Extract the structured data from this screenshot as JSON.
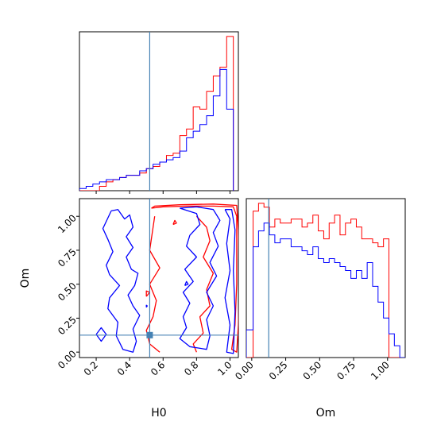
{
  "chart_data": {
    "type": "corner",
    "truth": {
      "H0": 0.52,
      "Om": 0.125
    },
    "colors": {
      "run_a": "#ff0000",
      "run_b": "#0000ff",
      "truth": "#4682b4"
    },
    "H0_hist": {
      "xlim": [
        0.1,
        1.05
      ],
      "edges": [
        0.0,
        0.1,
        0.14,
        0.18,
        0.22,
        0.26,
        0.3,
        0.34,
        0.38,
        0.42,
        0.46,
        0.5,
        0.54,
        0.58,
        0.62,
        0.66,
        0.7,
        0.74,
        0.78,
        0.82,
        0.86,
        0.9,
        0.94,
        0.98,
        1.02
      ],
      "red": [
        0,
        0,
        0,
        0,
        2,
        4,
        5,
        6,
        7,
        7,
        8,
        10,
        11,
        13,
        16,
        17,
        25,
        28,
        38,
        37,
        45,
        52,
        56,
        70
      ],
      "blue": [
        0,
        1,
        2,
        3,
        4,
        5,
        5,
        6,
        7,
        7,
        9,
        10,
        12,
        13,
        14,
        15,
        18,
        24,
        27,
        30,
        34,
        43,
        55,
        37
      ]
    },
    "Om_hist": {
      "xlim": [
        -0.04,
        1.13
      ],
      "edges": [
        -0.04,
        0.01,
        0.05,
        0.09,
        0.13,
        0.17,
        0.21,
        0.25,
        0.29,
        0.33,
        0.37,
        0.41,
        0.45,
        0.49,
        0.53,
        0.57,
        0.61,
        0.65,
        0.69,
        0.73,
        0.77,
        0.81,
        0.85,
        0.89,
        0.93,
        0.97,
        1.01,
        1.05,
        1.09,
        1.13
      ],
      "red": [
        0,
        37,
        39,
        38,
        33,
        35,
        34,
        34,
        35,
        35,
        33,
        34,
        36,
        32,
        30,
        34,
        36,
        31,
        34,
        35,
        33,
        30,
        30,
        29,
        28,
        30,
        0,
        0,
        0
      ],
      "blue": [
        7,
        28,
        32,
        34,
        31,
        29,
        30,
        30,
        28,
        28,
        27,
        26,
        28,
        25,
        24,
        25,
        24,
        23,
        22,
        20,
        22,
        20,
        24,
        18,
        14,
        10,
        6,
        3,
        0
      ]
    },
    "joint": {
      "xlim": [
        0.1,
        1.05
      ],
      "ylim": [
        -0.04,
        1.13
      ],
      "red_contours": [
        [
          [
            0.53,
            1.06
          ],
          [
            0.6,
            1.07
          ],
          [
            0.75,
            1.075
          ],
          [
            0.9,
            1.075
          ],
          [
            1.02,
            1.07
          ],
          [
            1.04,
            1.0
          ],
          [
            1.04,
            0.8
          ],
          [
            1.04,
            0.5
          ],
          [
            1.03,
            0.2
          ],
          [
            1.01,
            0.02
          ],
          [
            1.04,
            0.0
          ],
          [
            1.05,
            0.2
          ],
          [
            1.055,
            0.5
          ],
          [
            1.05,
            0.9
          ],
          [
            1.04,
            1.08
          ],
          [
            0.9,
            1.09
          ],
          [
            0.7,
            1.085
          ],
          [
            0.55,
            1.075
          ],
          [
            0.53,
            1.06
          ]
        ],
        [
          [
            0.55,
            1.0
          ],
          [
            0.52,
            0.75
          ],
          [
            0.58,
            0.62
          ],
          [
            0.52,
            0.5
          ],
          [
            0.56,
            0.38
          ],
          [
            0.54,
            0.26
          ],
          [
            0.5,
            0.16
          ],
          [
            0.52,
            0.06
          ],
          [
            0.58,
            0.0
          ]
        ],
        [
          [
            0.8,
            1.0
          ],
          [
            0.86,
            0.92
          ],
          [
            0.88,
            0.82
          ],
          [
            0.84,
            0.7
          ],
          [
            0.9,
            0.58
          ],
          [
            0.86,
            0.46
          ],
          [
            0.88,
            0.34
          ],
          [
            0.82,
            0.26
          ],
          [
            0.84,
            0.14
          ],
          [
            0.78,
            0.06
          ],
          [
            0.8,
            0.0
          ]
        ],
        [
          [
            0.66,
            0.94
          ],
          [
            0.68,
            0.95
          ],
          [
            0.67,
            0.97
          ],
          [
            0.66,
            0.94
          ]
        ],
        [
          [
            0.5,
            0.41
          ],
          [
            0.52,
            0.44
          ],
          [
            0.5,
            0.45
          ],
          [
            0.5,
            0.41
          ]
        ]
      ],
      "blue_contours": [
        [
          [
            0.29,
            1.04
          ],
          [
            0.33,
            1.05
          ],
          [
            0.37,
            0.98
          ],
          [
            0.4,
            1.01
          ],
          [
            0.42,
            0.92
          ],
          [
            0.38,
            0.85
          ],
          [
            0.42,
            0.77
          ],
          [
            0.38,
            0.7
          ],
          [
            0.41,
            0.61
          ],
          [
            0.45,
            0.58
          ],
          [
            0.43,
            0.49
          ],
          [
            0.39,
            0.42
          ],
          [
            0.42,
            0.34
          ],
          [
            0.46,
            0.27
          ],
          [
            0.42,
            0.17
          ],
          [
            0.44,
            0.08
          ],
          [
            0.42,
            0.0
          ],
          [
            0.36,
            0.02
          ],
          [
            0.32,
            0.12
          ],
          [
            0.33,
            0.22
          ],
          [
            0.27,
            0.32
          ],
          [
            0.28,
            0.4
          ],
          [
            0.34,
            0.49
          ],
          [
            0.28,
            0.57
          ],
          [
            0.26,
            0.64
          ],
          [
            0.3,
            0.74
          ],
          [
            0.27,
            0.83
          ],
          [
            0.24,
            0.91
          ],
          [
            0.29,
            1.04
          ]
        ],
        [
          [
            0.7,
            1.06
          ],
          [
            0.8,
            1.02
          ],
          [
            0.82,
            0.94
          ],
          [
            0.76,
            0.86
          ],
          [
            0.74,
            0.78
          ],
          [
            0.8,
            0.7
          ],
          [
            0.73,
            0.61
          ],
          [
            0.78,
            0.52
          ],
          [
            0.72,
            0.44
          ],
          [
            0.76,
            0.36
          ],
          [
            0.72,
            0.26
          ],
          [
            0.74,
            0.18
          ],
          [
            0.7,
            0.1
          ],
          [
            0.76,
            0.04
          ],
          [
            0.86,
            0.02
          ],
          [
            0.88,
            0.12
          ],
          [
            0.86,
            0.24
          ],
          [
            0.9,
            0.34
          ],
          [
            0.86,
            0.44
          ],
          [
            0.92,
            0.56
          ],
          [
            0.88,
            0.66
          ],
          [
            0.93,
            0.78
          ],
          [
            0.9,
            0.88
          ],
          [
            0.94,
            0.97
          ],
          [
            0.9,
            1.05
          ],
          [
            0.8,
            1.07
          ],
          [
            0.7,
            1.06
          ]
        ],
        [
          [
            0.97,
            1.05
          ],
          [
            1.0,
            0.98
          ],
          [
            0.98,
            0.8
          ],
          [
            1.0,
            0.6
          ],
          [
            0.97,
            0.4
          ],
          [
            1.0,
            0.2
          ],
          [
            0.98,
            0.0
          ],
          [
            1.02,
            -0.01
          ],
          [
            1.03,
            0.3
          ],
          [
            1.02,
            0.6
          ],
          [
            1.03,
            0.9
          ],
          [
            1.01,
            1.05
          ],
          [
            0.97,
            1.05
          ]
        ],
        [
          [
            0.2,
            0.13
          ],
          [
            0.23,
            0.08
          ],
          [
            0.26,
            0.13
          ],
          [
            0.23,
            0.18
          ],
          [
            0.2,
            0.13
          ]
        ],
        [
          [
            0.73,
            0.49
          ],
          [
            0.75,
            0.5
          ],
          [
            0.74,
            0.52
          ],
          [
            0.73,
            0.49
          ]
        ],
        [
          [
            0.5,
            0.33
          ],
          [
            0.505,
            0.34
          ],
          [
            0.5,
            0.345
          ],
          [
            0.5,
            0.33
          ]
        ]
      ]
    },
    "ticks": {
      "H0": [
        "0.2",
        "0.4",
        "0.6",
        "0.8",
        "1.0"
      ],
      "Om": [
        "0.00",
        "0.25",
        "0.50",
        "0.75",
        "1.00"
      ]
    },
    "xlabels": {
      "H0": "H0",
      "Om": "Om"
    },
    "ylabel": "Om"
  }
}
